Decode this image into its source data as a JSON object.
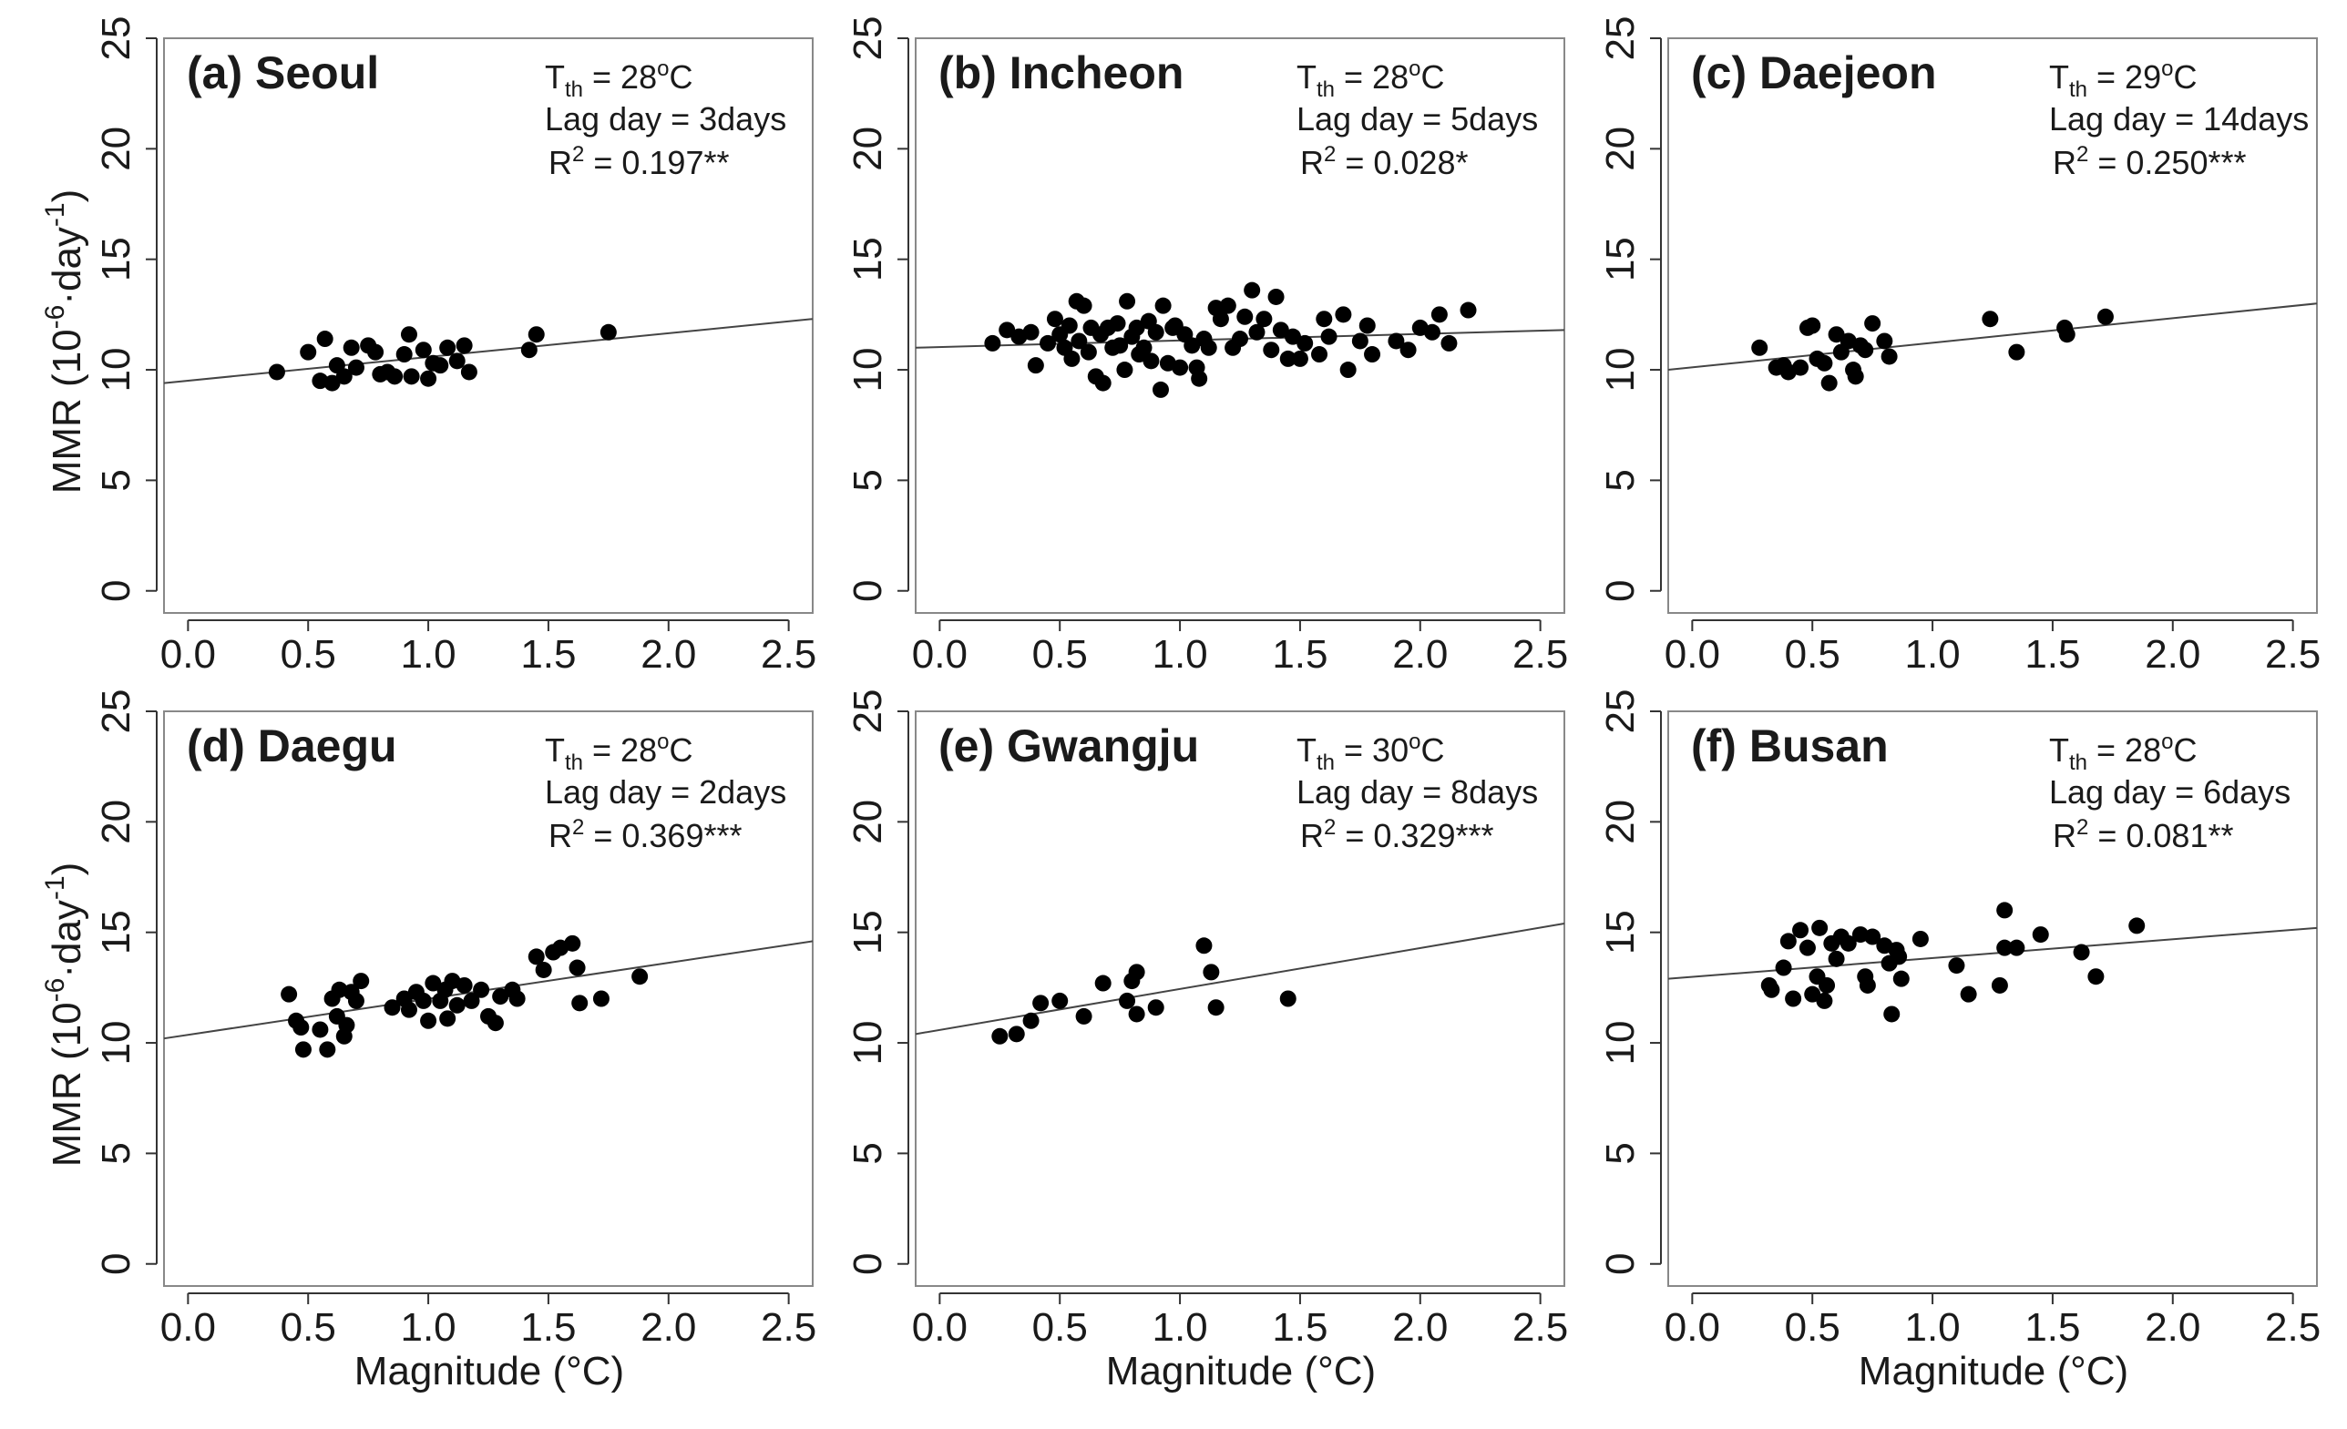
{
  "figure": {
    "x_axis_title": "Magnitude (°C)",
    "y_axis_title": "MMR (10",
    "y_axis_title_sup1": "-6",
    "y_axis_title_mid": "·day",
    "y_axis_title_sup2": "-1",
    "y_axis_title_end": ")"
  },
  "chart_data": [
    {
      "type": "scatter",
      "title": "(a) Seoul",
      "annotation": {
        "threshold": "28",
        "lag_day": "3days",
        "r2": "0.197**"
      },
      "xlabel": "Magnitude (°C)",
      "ylabel": "MMR (10^-6·day^-1)",
      "xlim": [
        -0.1,
        2.6
      ],
      "ylim": [
        -1,
        25
      ],
      "xticks": [
        0.0,
        0.5,
        1.0,
        1.5,
        2.0,
        2.5
      ],
      "xtick_labels": [
        "0.0",
        "0.5",
        "1.0",
        "1.5",
        "2.0",
        "2.5"
      ],
      "yticks": [
        0,
        5,
        10,
        15,
        20,
        25
      ],
      "ytick_labels": [
        "0",
        "5",
        "10",
        "15",
        "20",
        "25"
      ],
      "fit_line": {
        "x": [
          -0.1,
          2.6
        ],
        "y": [
          9.4,
          12.3
        ]
      },
      "points": [
        [
          0.37,
          9.9
        ],
        [
          0.5,
          10.8
        ],
        [
          0.55,
          9.5
        ],
        [
          0.57,
          11.4
        ],
        [
          0.6,
          9.4
        ],
        [
          0.62,
          10.2
        ],
        [
          0.65,
          9.7
        ],
        [
          0.68,
          11.0
        ],
        [
          0.7,
          10.1
        ],
        [
          0.75,
          11.1
        ],
        [
          0.78,
          10.8
        ],
        [
          0.8,
          9.8
        ],
        [
          0.83,
          9.9
        ],
        [
          0.86,
          9.7
        ],
        [
          0.9,
          10.7
        ],
        [
          0.92,
          11.6
        ],
        [
          0.93,
          9.7
        ],
        [
          0.98,
          10.9
        ],
        [
          1.0,
          9.6
        ],
        [
          1.02,
          10.3
        ],
        [
          1.05,
          10.2
        ],
        [
          1.08,
          11.0
        ],
        [
          1.12,
          10.4
        ],
        [
          1.15,
          11.1
        ],
        [
          1.17,
          9.9
        ],
        [
          1.42,
          10.9
        ],
        [
          1.45,
          11.6
        ],
        [
          1.75,
          11.7
        ]
      ]
    },
    {
      "type": "scatter",
      "title": "(b) Incheon",
      "annotation": {
        "threshold": "28",
        "lag_day": "5days",
        "r2": "0.028*"
      },
      "xlabel": "Magnitude (°C)",
      "ylabel": "MMR (10^-6·day^-1)",
      "xlim": [
        -0.1,
        2.6
      ],
      "ylim": [
        -1,
        25
      ],
      "xticks": [
        0.0,
        0.5,
        1.0,
        1.5,
        2.0,
        2.5
      ],
      "xtick_labels": [
        "0.0",
        "0.5",
        "1.0",
        "1.5",
        "2.0",
        "2.5"
      ],
      "yticks": [
        0,
        5,
        10,
        15,
        20,
        25
      ],
      "ytick_labels": [
        "0",
        "5",
        "10",
        "15",
        "20",
        "25"
      ],
      "fit_line": {
        "x": [
          -0.1,
          2.6
        ],
        "y": [
          11.0,
          11.8
        ]
      },
      "points": [
        [
          0.22,
          11.2
        ],
        [
          0.28,
          11.8
        ],
        [
          0.33,
          11.5
        ],
        [
          0.38,
          11.7
        ],
        [
          0.4,
          10.2
        ],
        [
          0.45,
          11.2
        ],
        [
          0.48,
          12.3
        ],
        [
          0.5,
          11.6
        ],
        [
          0.52,
          11.0
        ],
        [
          0.54,
          12.0
        ],
        [
          0.55,
          10.5
        ],
        [
          0.57,
          13.1
        ],
        [
          0.58,
          11.3
        ],
        [
          0.6,
          12.9
        ],
        [
          0.62,
          10.8
        ],
        [
          0.63,
          11.9
        ],
        [
          0.65,
          9.7
        ],
        [
          0.67,
          11.6
        ],
        [
          0.68,
          9.4
        ],
        [
          0.7,
          11.9
        ],
        [
          0.72,
          11.0
        ],
        [
          0.74,
          12.1
        ],
        [
          0.75,
          11.1
        ],
        [
          0.77,
          10.0
        ],
        [
          0.78,
          13.1
        ],
        [
          0.8,
          11.5
        ],
        [
          0.82,
          11.9
        ],
        [
          0.83,
          10.7
        ],
        [
          0.85,
          11.0
        ],
        [
          0.87,
          12.2
        ],
        [
          0.88,
          10.4
        ],
        [
          0.9,
          11.7
        ],
        [
          0.92,
          9.1
        ],
        [
          0.93,
          12.9
        ],
        [
          0.95,
          10.3
        ],
        [
          0.97,
          11.9
        ],
        [
          0.98,
          12.0
        ],
        [
          1.0,
          10.1
        ],
        [
          1.02,
          11.6
        ],
        [
          1.05,
          11.1
        ],
        [
          1.07,
          10.1
        ],
        [
          1.08,
          9.6
        ],
        [
          1.1,
          11.4
        ],
        [
          1.12,
          11.0
        ],
        [
          1.15,
          12.8
        ],
        [
          1.17,
          12.3
        ],
        [
          1.2,
          12.9
        ],
        [
          1.22,
          11.0
        ],
        [
          1.25,
          11.4
        ],
        [
          1.27,
          12.4
        ],
        [
          1.3,
          13.6
        ],
        [
          1.32,
          11.7
        ],
        [
          1.35,
          12.3
        ],
        [
          1.38,
          10.9
        ],
        [
          1.4,
          13.3
        ],
        [
          1.42,
          11.8
        ],
        [
          1.45,
          10.5
        ],
        [
          1.47,
          11.5
        ],
        [
          1.5,
          10.5
        ],
        [
          1.52,
          11.2
        ],
        [
          1.58,
          10.7
        ],
        [
          1.6,
          12.3
        ],
        [
          1.62,
          11.5
        ],
        [
          1.68,
          12.5
        ],
        [
          1.7,
          10.0
        ],
        [
          1.75,
          11.3
        ],
        [
          1.78,
          12.0
        ],
        [
          1.8,
          10.7
        ],
        [
          1.9,
          11.3
        ],
        [
          1.95,
          10.9
        ],
        [
          2.0,
          11.9
        ],
        [
          2.05,
          11.7
        ],
        [
          2.08,
          12.5
        ],
        [
          2.12,
          11.2
        ],
        [
          2.2,
          12.7
        ]
      ]
    },
    {
      "type": "scatter",
      "title": "(c) Daejeon",
      "annotation": {
        "threshold": "29",
        "lag_day": "14days",
        "r2": "0.250***"
      },
      "xlabel": "Magnitude (°C)",
      "ylabel": "MMR (10^-6·day^-1)",
      "xlim": [
        -0.1,
        2.6
      ],
      "ylim": [
        -1,
        25
      ],
      "xticks": [
        0.0,
        0.5,
        1.0,
        1.5,
        2.0,
        2.5
      ],
      "xtick_labels": [
        "0.0",
        "0.5",
        "1.0",
        "1.5",
        "2.0",
        "2.5"
      ],
      "yticks": [
        0,
        5,
        10,
        15,
        20,
        25
      ],
      "ytick_labels": [
        "0",
        "5",
        "10",
        "15",
        "20",
        "25"
      ],
      "fit_line": {
        "x": [
          -0.1,
          2.6
        ],
        "y": [
          10.0,
          13.0
        ]
      },
      "points": [
        [
          0.28,
          11.0
        ],
        [
          0.35,
          10.1
        ],
        [
          0.38,
          10.2
        ],
        [
          0.4,
          9.9
        ],
        [
          0.45,
          10.1
        ],
        [
          0.48,
          11.9
        ],
        [
          0.5,
          12.0
        ],
        [
          0.52,
          10.5
        ],
        [
          0.55,
          10.3
        ],
        [
          0.57,
          9.4
        ],
        [
          0.6,
          11.6
        ],
        [
          0.62,
          10.8
        ],
        [
          0.65,
          11.3
        ],
        [
          0.67,
          10.0
        ],
        [
          0.68,
          9.7
        ],
        [
          0.7,
          11.1
        ],
        [
          0.72,
          10.9
        ],
        [
          0.75,
          12.1
        ],
        [
          0.8,
          11.3
        ],
        [
          0.82,
          10.6
        ],
        [
          1.24,
          12.3
        ],
        [
          1.35,
          10.8
        ],
        [
          1.55,
          11.9
        ],
        [
          1.56,
          11.6
        ],
        [
          1.72,
          12.4
        ]
      ]
    },
    {
      "type": "scatter",
      "title": "(d) Daegu",
      "annotation": {
        "threshold": "28",
        "lag_day": "2days",
        "r2": "0.369***"
      },
      "xlabel": "Magnitude (°C)",
      "ylabel": "MMR (10^-6·day^-1)",
      "xlim": [
        -0.1,
        2.6
      ],
      "ylim": [
        -1,
        25
      ],
      "xticks": [
        0.0,
        0.5,
        1.0,
        1.5,
        2.0,
        2.5
      ],
      "xtick_labels": [
        "0.0",
        "0.5",
        "1.0",
        "1.5",
        "2.0",
        "2.5"
      ],
      "yticks": [
        0,
        5,
        10,
        15,
        20,
        25
      ],
      "ytick_labels": [
        "0",
        "5",
        "10",
        "15",
        "20",
        "25"
      ],
      "fit_line": {
        "x": [
          -0.1,
          2.6
        ],
        "y": [
          10.2,
          14.6
        ]
      },
      "points": [
        [
          0.42,
          12.2
        ],
        [
          0.45,
          11.0
        ],
        [
          0.47,
          10.7
        ],
        [
          0.48,
          9.7
        ],
        [
          0.55,
          10.6
        ],
        [
          0.58,
          9.7
        ],
        [
          0.6,
          12.0
        ],
        [
          0.62,
          11.2
        ],
        [
          0.63,
          12.4
        ],
        [
          0.65,
          10.3
        ],
        [
          0.66,
          10.8
        ],
        [
          0.68,
          12.3
        ],
        [
          0.7,
          11.9
        ],
        [
          0.72,
          12.8
        ],
        [
          0.85,
          11.6
        ],
        [
          0.9,
          12.0
        ],
        [
          0.92,
          11.5
        ],
        [
          0.95,
          12.3
        ],
        [
          0.98,
          11.9
        ],
        [
          1.0,
          11.0
        ],
        [
          1.02,
          12.7
        ],
        [
          1.05,
          11.9
        ],
        [
          1.07,
          12.4
        ],
        [
          1.08,
          11.1
        ],
        [
          1.1,
          12.8
        ],
        [
          1.12,
          11.7
        ],
        [
          1.15,
          12.6
        ],
        [
          1.18,
          11.9
        ],
        [
          1.22,
          12.4
        ],
        [
          1.25,
          11.2
        ],
        [
          1.28,
          10.9
        ],
        [
          1.3,
          12.1
        ],
        [
          1.35,
          12.4
        ],
        [
          1.37,
          12.0
        ],
        [
          1.45,
          13.9
        ],
        [
          1.48,
          13.3
        ],
        [
          1.52,
          14.1
        ],
        [
          1.55,
          14.3
        ],
        [
          1.6,
          14.5
        ],
        [
          1.62,
          13.4
        ],
        [
          1.63,
          11.8
        ],
        [
          1.72,
          12.0
        ],
        [
          1.88,
          13.0
        ]
      ]
    },
    {
      "type": "scatter",
      "title": "(e) Gwangju",
      "annotation": {
        "threshold": "30",
        "lag_day": "8days",
        "r2": "0.329***"
      },
      "xlabel": "Magnitude (°C)",
      "ylabel": "MMR (10^-6·day^-1)",
      "xlim": [
        -0.1,
        2.6
      ],
      "ylim": [
        -1,
        25
      ],
      "xticks": [
        0.0,
        0.5,
        1.0,
        1.5,
        2.0,
        2.5
      ],
      "xtick_labels": [
        "0.0",
        "0.5",
        "1.0",
        "1.5",
        "2.0",
        "2.5"
      ],
      "yticks": [
        0,
        5,
        10,
        15,
        20,
        25
      ],
      "ytick_labels": [
        "0",
        "5",
        "10",
        "15",
        "20",
        "25"
      ],
      "fit_line": {
        "x": [
          -0.1,
          2.6
        ],
        "y": [
          10.4,
          15.4
        ]
      },
      "points": [
        [
          0.25,
          10.3
        ],
        [
          0.32,
          10.4
        ],
        [
          0.38,
          11.0
        ],
        [
          0.42,
          11.8
        ],
        [
          0.5,
          11.9
        ],
        [
          0.6,
          11.2
        ],
        [
          0.68,
          12.7
        ],
        [
          0.78,
          11.9
        ],
        [
          0.8,
          12.8
        ],
        [
          0.82,
          13.2
        ],
        [
          0.82,
          11.3
        ],
        [
          0.9,
          11.6
        ],
        [
          1.1,
          14.4
        ],
        [
          1.13,
          13.2
        ],
        [
          1.15,
          11.6
        ],
        [
          1.45,
          12.0
        ]
      ]
    },
    {
      "type": "scatter",
      "title": "(f) Busan",
      "annotation": {
        "threshold": "28",
        "lag_day": "6days",
        "r2": "0.081**"
      },
      "xlabel": "Magnitude (°C)",
      "ylabel": "MMR (10^-6·day^-1)",
      "xlim": [
        -0.1,
        2.6
      ],
      "ylim": [
        -1,
        25
      ],
      "xticks": [
        0.0,
        0.5,
        1.0,
        1.5,
        2.0,
        2.5
      ],
      "xtick_labels": [
        "0.0",
        "0.5",
        "1.0",
        "1.5",
        "2.0",
        "2.5"
      ],
      "yticks": [
        0,
        5,
        10,
        15,
        20,
        25
      ],
      "ytick_labels": [
        "0",
        "5",
        "10",
        "15",
        "20",
        "25"
      ],
      "fit_line": {
        "x": [
          -0.1,
          2.6
        ],
        "y": [
          12.9,
          15.2
        ]
      },
      "points": [
        [
          0.32,
          12.6
        ],
        [
          0.33,
          12.4
        ],
        [
          0.38,
          13.4
        ],
        [
          0.4,
          14.6
        ],
        [
          0.42,
          12.0
        ],
        [
          0.45,
          15.1
        ],
        [
          0.48,
          14.3
        ],
        [
          0.5,
          12.2
        ],
        [
          0.52,
          13.0
        ],
        [
          0.53,
          15.2
        ],
        [
          0.55,
          11.9
        ],
        [
          0.56,
          12.6
        ],
        [
          0.58,
          14.5
        ],
        [
          0.6,
          13.8
        ],
        [
          0.62,
          14.8
        ],
        [
          0.65,
          14.5
        ],
        [
          0.7,
          14.9
        ],
        [
          0.72,
          13.0
        ],
        [
          0.73,
          12.6
        ],
        [
          0.75,
          14.8
        ],
        [
          0.8,
          14.4
        ],
        [
          0.82,
          13.6
        ],
        [
          0.83,
          11.3
        ],
        [
          0.85,
          14.2
        ],
        [
          0.86,
          13.9
        ],
        [
          0.87,
          12.9
        ],
        [
          0.95,
          14.7
        ],
        [
          1.1,
          13.5
        ],
        [
          1.15,
          12.2
        ],
        [
          1.28,
          12.6
        ],
        [
          1.3,
          14.3
        ],
        [
          1.3,
          16.0
        ],
        [
          1.35,
          14.3
        ],
        [
          1.45,
          14.9
        ],
        [
          1.62,
          14.1
        ],
        [
          1.68,
          13.0
        ],
        [
          1.85,
          15.3
        ]
      ]
    }
  ]
}
